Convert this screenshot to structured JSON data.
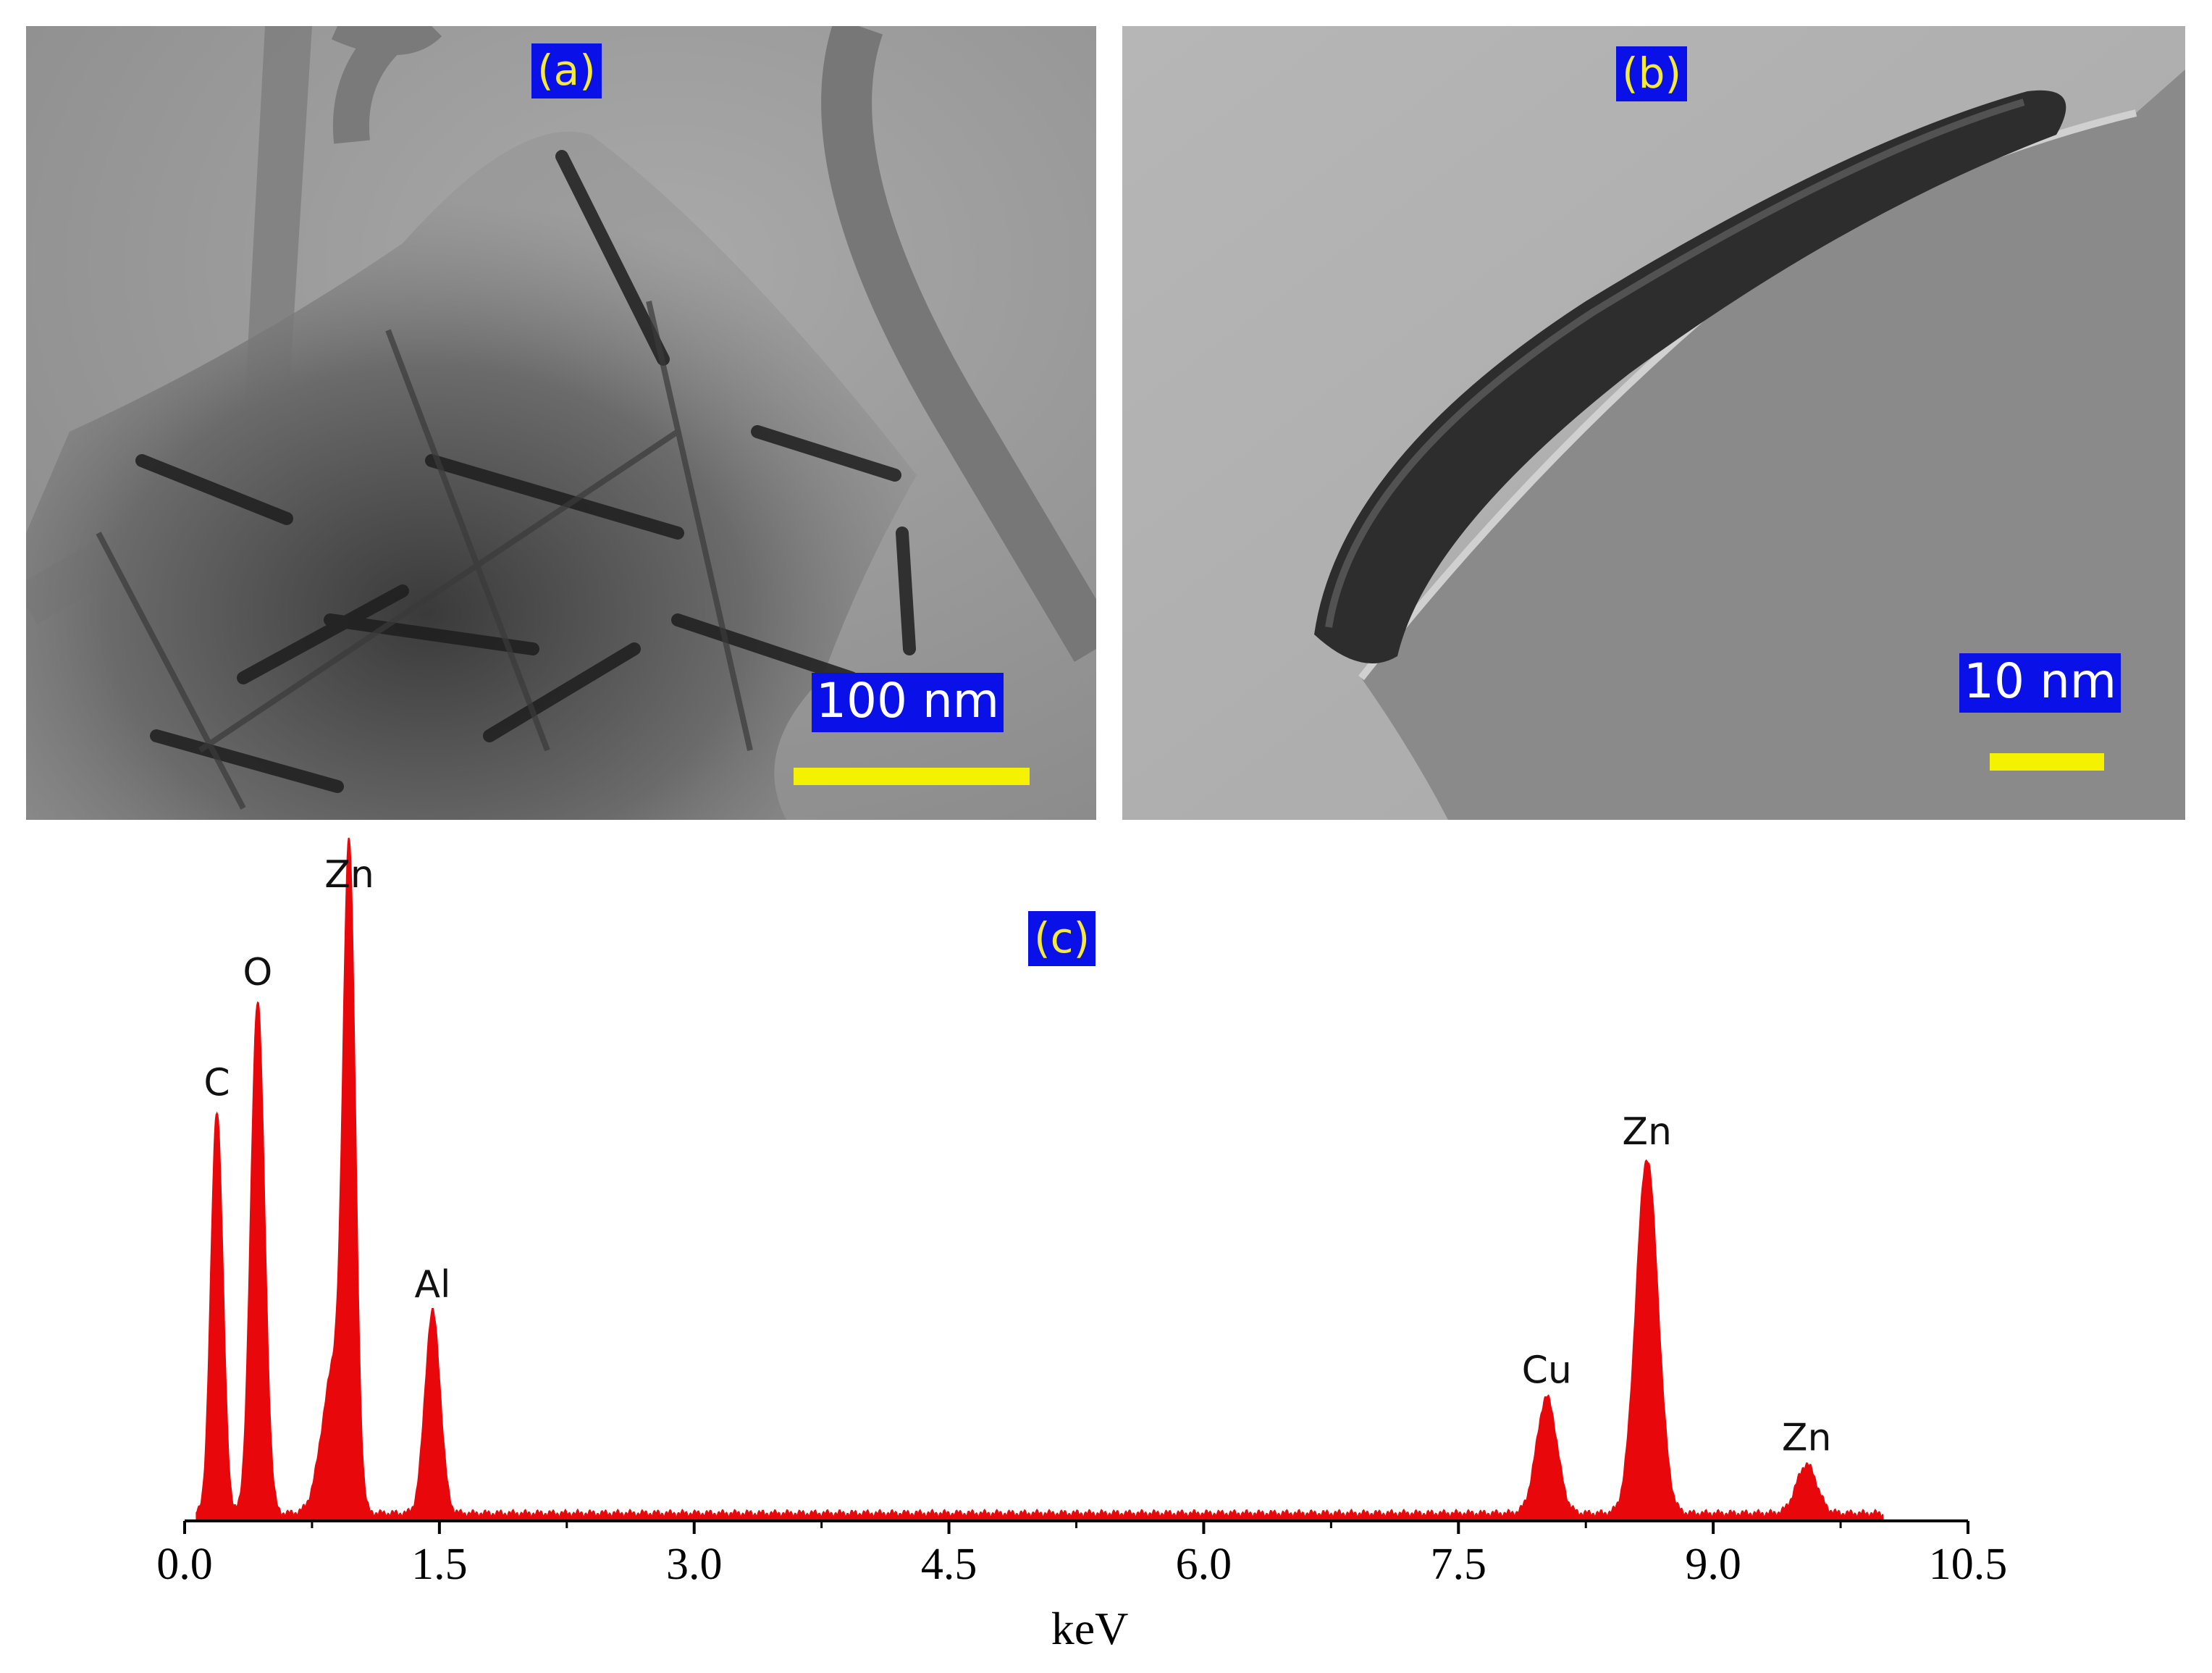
{
  "panels": {
    "a": {
      "label": "(a)",
      "scale_text": "100 nm"
    },
    "b": {
      "label": "(b)",
      "scale_text": "10 nm"
    },
    "c": {
      "label": "(c)"
    }
  },
  "chart_data": {
    "type": "area",
    "xlabel": "keV",
    "ylabel": "",
    "xlim": [
      0.0,
      10.5
    ],
    "x_ticks": [
      "0.0",
      "1.5",
      "3.0",
      "4.5",
      "6.0",
      "7.5",
      "9.0",
      "10.5"
    ],
    "series": [
      {
        "color": "#e8080b",
        "peaks": [
          {
            "center": 0.19,
            "height": 0.66,
            "width": 0.035
          },
          {
            "center": 0.43,
            "height": 0.84,
            "width": 0.04
          },
          {
            "center": 0.88,
            "height": 0.24,
            "width": 0.07
          },
          {
            "center": 0.97,
            "height": 1.0,
            "width": 0.035
          },
          {
            "center": 1.46,
            "height": 0.33,
            "width": 0.045
          },
          {
            "center": 8.02,
            "height": 0.19,
            "width": 0.06
          },
          {
            "center": 8.61,
            "height": 0.58,
            "width": 0.065
          },
          {
            "center": 9.55,
            "height": 0.08,
            "width": 0.06
          }
        ]
      }
    ],
    "annotations": [
      {
        "text": "C",
        "x": 0.19,
        "y": 0.66
      },
      {
        "text": "O",
        "x": 0.43,
        "y": 0.84
      },
      {
        "text": "Zn",
        "x": 0.97,
        "y": 1.0
      },
      {
        "text": "Al",
        "x": 1.46,
        "y": 0.33
      },
      {
        "text": "Cu",
        "x": 8.02,
        "y": 0.19
      },
      {
        "text": "Zn",
        "x": 8.61,
        "y": 0.58
      },
      {
        "text": "Zn",
        "x": 9.55,
        "y": 0.08
      }
    ]
  }
}
